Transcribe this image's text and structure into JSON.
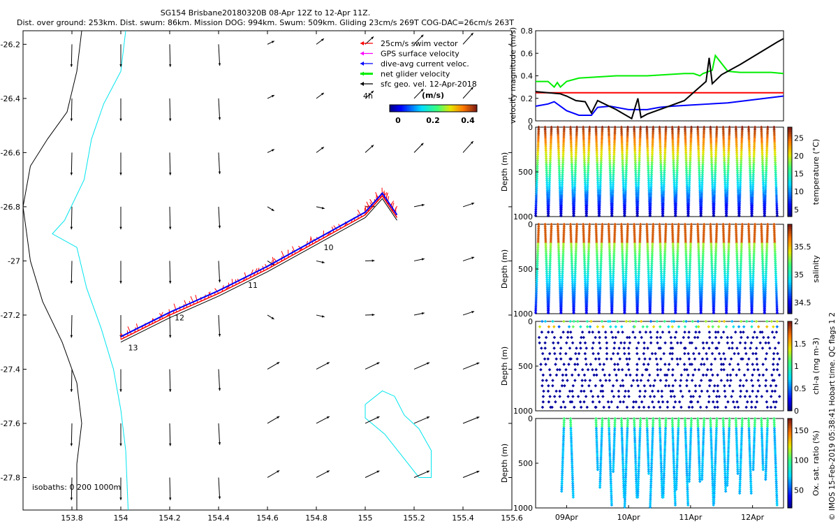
{
  "title_line1": "SG154 Brisbane20180320B 08-Apr 12Z to 12-Apr 11Z.",
  "title_line2": "Dist. over ground: 253km. Dist. swum: 86km. Mission DOG: 994km. Swum: 509km. Gliding 23cm/s 269T COG-DAC=26cm/s 263T",
  "copyright": "© IMOS 15-Feb-2019 05:38:41 Hobart time. QC flags 1  2",
  "colors": {
    "red": "#ff0000",
    "green": "#00ee00",
    "blue": "#0000ff",
    "black": "#000000",
    "magenta": "#ff00ff",
    "cyan": "#00e5ee"
  },
  "chart_data": [
    {
      "type": "scatter",
      "name": "map",
      "xlim": [
        153.6,
        155.6
      ],
      "ylim": [
        -27.92,
        -26.15
      ],
      "xticks": [
        "153.8",
        "154",
        "154.2",
        "154.4",
        "154.6",
        "154.8",
        "155",
        "155.2",
        "155.4",
        "155.6"
      ],
      "yticks": [
        "-26.2",
        "-26.4",
        "-26.6",
        "-26.8",
        "-27",
        "-27.2",
        "-27.4",
        "-27.6",
        "-27.8"
      ],
      "legend": [
        {
          "label": "25cm/s swim vector",
          "color": "#ff0000"
        },
        {
          "label": "GPS surface velocity",
          "color": "#ff00ff"
        },
        {
          "label": "dive-avg current veloc.",
          "color": "#0000ff"
        },
        {
          "label": "net glider velocity",
          "color": "#00ee00"
        },
        {
          "label": "sfc geo. vel. 12-Apr-2018",
          "color": "#000000"
        }
      ],
      "arrow_scale_label": "4h",
      "colorbar_label": "(m/s)",
      "colorbar_ticks": [
        "0",
        "0.2",
        "0.4"
      ],
      "colorbar_range": [
        0,
        0.5
      ],
      "isobaths_label": "isobaths: 0   200  1000m",
      "track": [
        [
          154.0,
          -27.29
        ],
        [
          154.2,
          -27.2
        ],
        [
          154.4,
          -27.12
        ],
        [
          154.6,
          -27.03
        ],
        [
          154.8,
          -26.93
        ],
        [
          155.0,
          -26.83
        ],
        [
          155.07,
          -26.76
        ],
        [
          155.13,
          -26.84
        ]
      ],
      "day_labels": [
        {
          "text": "10",
          "lon": 154.83,
          "lat": -26.96
        },
        {
          "text": "11",
          "lon": 154.52,
          "lat": -27.1
        },
        {
          "text": "12",
          "lon": 154.22,
          "lat": -27.22
        },
        {
          "text": "13",
          "lon": 154.03,
          "lat": -27.33
        }
      ]
    },
    {
      "type": "line",
      "name": "velocity",
      "ylabel": "velocity magnitude (m/s)",
      "ylim": [
        0,
        0.8
      ],
      "yticks": [
        "0",
        "0.2",
        "0.4",
        "0.6",
        "0.8"
      ],
      "xrange_days": [
        8.5,
        12.5
      ],
      "series": [
        {
          "name": "net glider velocity",
          "color": "#00ee00",
          "t": [
            8.5,
            8.7,
            8.8,
            8.85,
            8.9,
            9.0,
            9.2,
            9.5,
            9.8,
            10.0,
            10.3,
            10.6,
            10.9,
            11.0,
            11.05,
            11.15,
            11.2,
            11.35,
            11.4,
            11.6,
            11.8,
            12.0,
            12.3,
            12.5
          ],
          "v": [
            0.35,
            0.35,
            0.3,
            0.34,
            0.3,
            0.35,
            0.38,
            0.39,
            0.4,
            0.4,
            0.4,
            0.41,
            0.42,
            0.42,
            0.42,
            0.4,
            0.42,
            0.45,
            0.58,
            0.44,
            0.43,
            0.43,
            0.43,
            0.42
          ]
        },
        {
          "name": "swim 25cm/s",
          "color": "#ff0000",
          "t": [
            8.5,
            12.5
          ],
          "v": [
            0.25,
            0.25
          ]
        },
        {
          "name": "dive-avg current",
          "color": "#0000ff",
          "t": [
            8.5,
            8.7,
            8.8,
            9.0,
            9.2,
            9.4,
            9.5,
            9.7,
            10.0,
            10.3,
            10.5,
            10.7,
            11.0,
            11.3,
            11.6,
            11.9,
            12.2,
            12.5
          ],
          "v": [
            0.13,
            0.15,
            0.17,
            0.09,
            0.05,
            0.05,
            0.12,
            0.13,
            0.1,
            0.1,
            0.12,
            0.13,
            0.14,
            0.15,
            0.16,
            0.18,
            0.2,
            0.22
          ]
        },
        {
          "name": "surface velocity",
          "color": "#000000",
          "t": [
            8.5,
            8.9,
            9.0,
            9.15,
            9.3,
            9.4,
            9.5,
            9.8,
            10.05,
            10.15,
            10.2,
            10.3,
            10.6,
            10.9,
            11.25,
            11.3,
            11.35,
            11.5,
            11.8,
            12.1,
            12.4,
            12.5
          ],
          "v": [
            0.26,
            0.24,
            0.22,
            0.18,
            0.17,
            0.07,
            0.18,
            0.1,
            0.02,
            0.2,
            0.03,
            0.06,
            0.12,
            0.18,
            0.35,
            0.56,
            0.33,
            0.41,
            0.5,
            0.6,
            0.7,
            0.73
          ]
        }
      ]
    },
    {
      "type": "scatter",
      "name": "temperature",
      "ylabel": "Depth (m)",
      "ylim": [
        1000,
        0
      ],
      "yticks": [
        "0",
        "500",
        "1000"
      ],
      "colorbar_label": "temperature (°C)",
      "colorbar_ticks": [
        "5",
        "10",
        "15",
        "20",
        "25"
      ],
      "colorbar_range": [
        3,
        28
      ]
    },
    {
      "type": "scatter",
      "name": "salinity",
      "ylabel": "Depth (m)",
      "ylim": [
        1000,
        0
      ],
      "yticks": [
        "0",
        "500",
        "1000"
      ],
      "colorbar_label": "salinity",
      "colorbar_ticks": [
        "34.5",
        "35",
        "35.5"
      ],
      "colorbar_range": [
        34.3,
        35.9
      ]
    },
    {
      "type": "scatter",
      "name": "chlorophyll",
      "ylabel": "Depth (m)",
      "ylim": [
        1000,
        0
      ],
      "yticks": [
        "0",
        "500",
        "1000"
      ],
      "colorbar_label": "chl-a (mg m-3)",
      "colorbar_ticks": [
        "0",
        "0.5",
        "1",
        "1.5",
        "2"
      ],
      "colorbar_range": [
        0,
        2
      ]
    },
    {
      "type": "scatter",
      "name": "oxygen",
      "ylabel": "Depth (m)",
      "ylim": [
        1000,
        0
      ],
      "yticks": [
        "0",
        "500",
        "1000"
      ],
      "colorbar_label": "Ox. sat. ratio (%)",
      "colorbar_ticks": [
        "50",
        "100",
        "150"
      ],
      "colorbar_range": [
        20,
        170
      ]
    },
    {
      "type": "axis",
      "name": "time",
      "ticks": [
        "09Apr",
        "10Apr",
        "11Apr",
        "12Apr"
      ],
      "tick_days": [
        9,
        10,
        11,
        12
      ]
    }
  ]
}
